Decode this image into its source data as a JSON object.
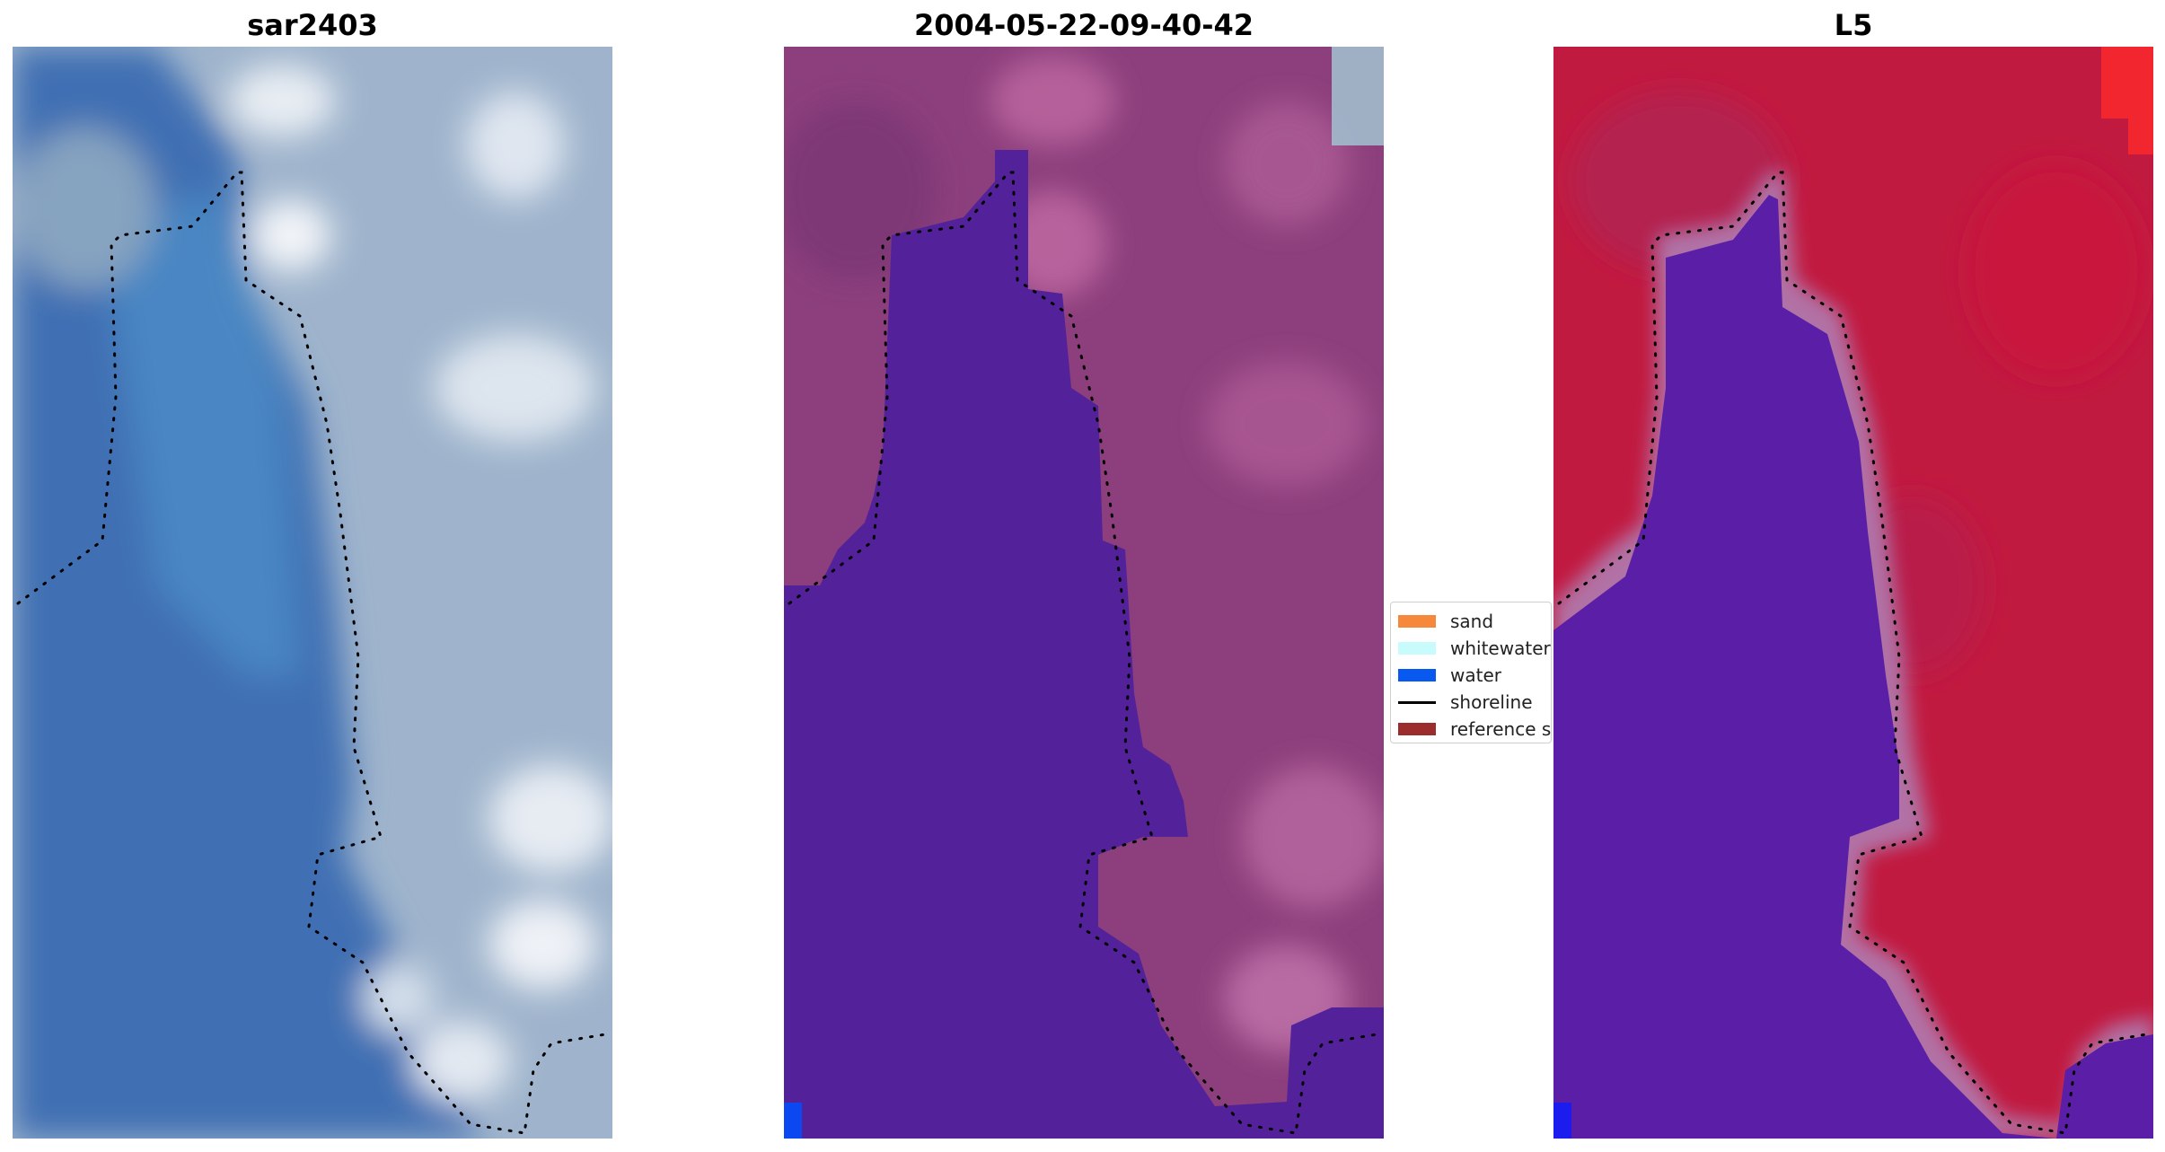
{
  "panels": [
    {
      "title": "sar2403"
    },
    {
      "title": "2004-05-22-09-40-42"
    },
    {
      "title": "L5"
    }
  ],
  "legend": {
    "items": [
      {
        "label": "sand",
        "color": "#f5883b",
        "kind": "patch"
      },
      {
        "label": "whitewater",
        "color": "#c8fcfc",
        "kind": "patch"
      },
      {
        "label": "water",
        "color": "#0859f0",
        "kind": "patch"
      },
      {
        "label": "shoreline",
        "color": "#000000",
        "kind": "line"
      },
      {
        "label": "reference shoreline",
        "color": "#9b2d2d",
        "kind": "patch"
      }
    ]
  },
  "colors": {
    "rgb_water": "#3f70b0",
    "rgb_land": "#a7b8cf",
    "class_water": "#53229a",
    "class_land": "#8c3f7c",
    "mndwi_water": "#5a1fa6",
    "mndwi_land": "#c11a40",
    "corner_water_marker": "#0b48f0"
  }
}
